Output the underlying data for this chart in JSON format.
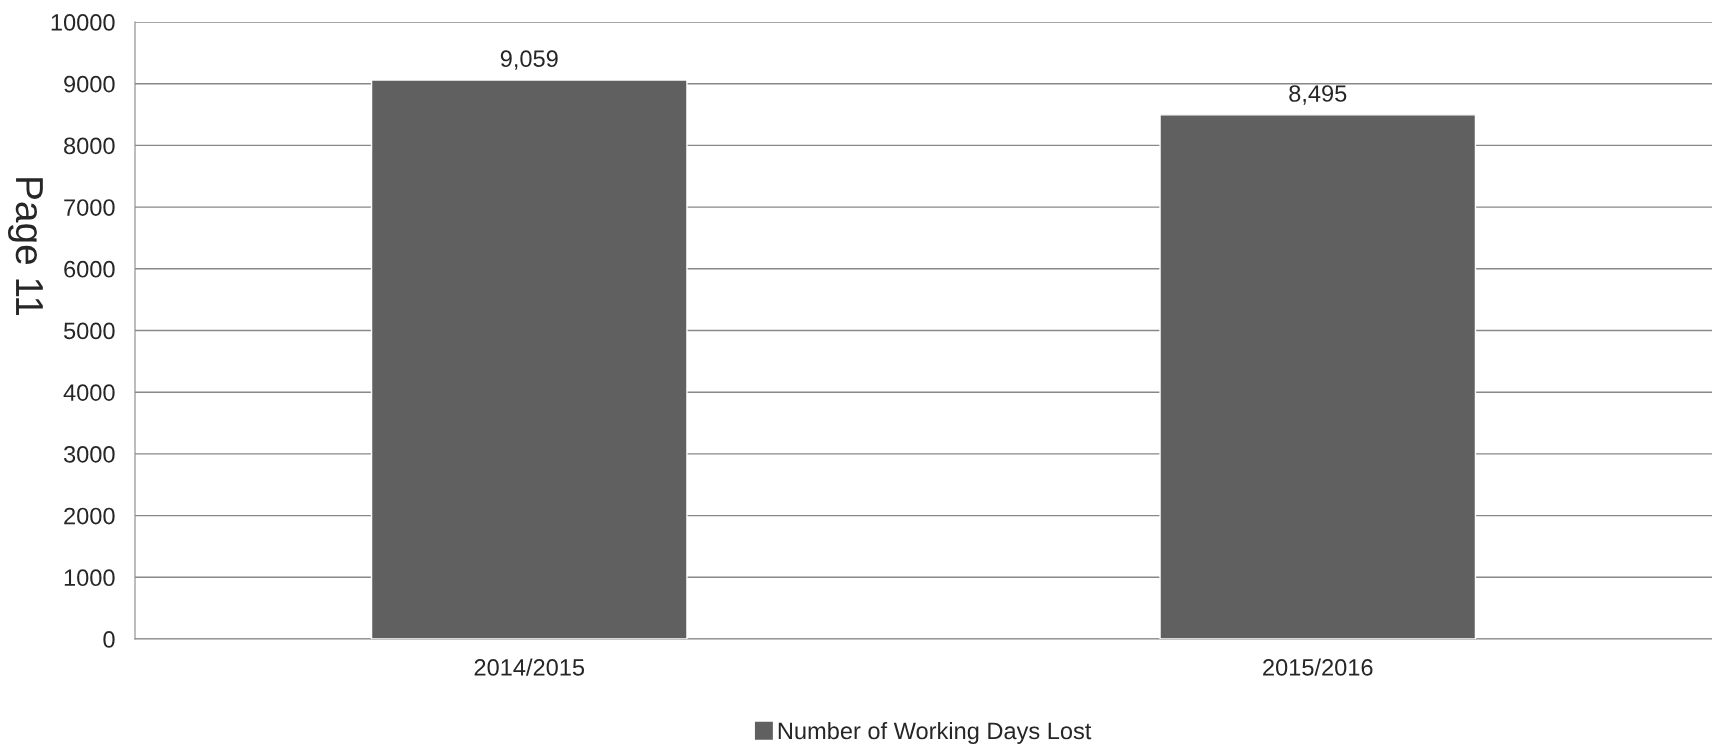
{
  "chart_data": {
    "type": "bar",
    "categories": [
      "2014/2015",
      "2015/2016"
    ],
    "series": [
      {
        "name": "Number of Working Days Lost",
        "color": "#606060",
        "values": [
          9059,
          8495
        ],
        "value_labels": [
          "9,059",
          "8,495"
        ]
      }
    ],
    "ylim": [
      0,
      10000
    ],
    "yticks": [
      0,
      1000,
      2000,
      3000,
      4000,
      5000,
      6000,
      7000,
      8000,
      9000,
      10000
    ],
    "grid": "y",
    "legend": "bottom",
    "annotations": [
      "Page 11"
    ]
  }
}
